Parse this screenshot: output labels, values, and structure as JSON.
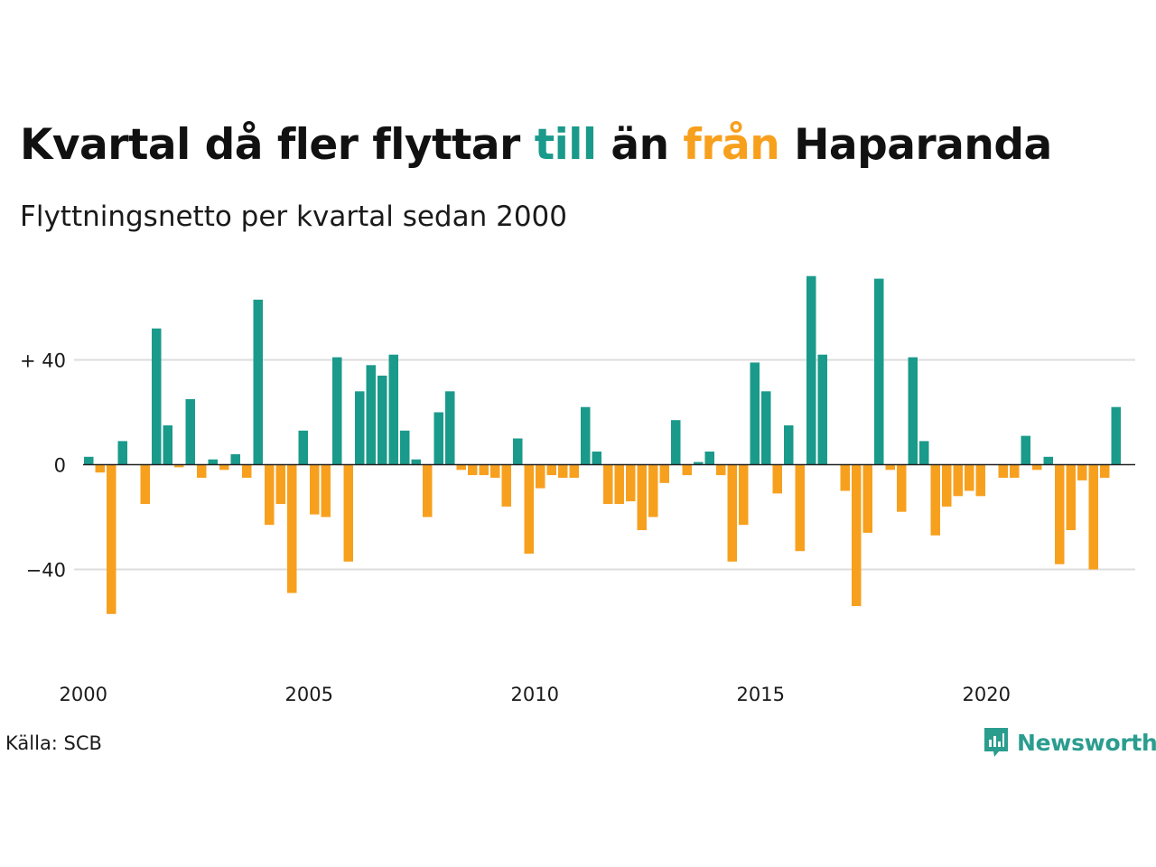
{
  "header": {
    "title_part1": "Kvartal då fler flyttar ",
    "title_till": "till",
    "title_part2": " än ",
    "title_fran": "från",
    "title_part3": " Haparanda",
    "subtitle": "Flyttningsnetto per kvartal sedan 2000"
  },
  "footer": {
    "source": "Källa: SCB",
    "brand": "Newsworthy"
  },
  "colors": {
    "positive": "#1a9a8a",
    "negative": "#f7a01e",
    "grid": "#dddddd",
    "axis": "#222222",
    "brand": "#2a9d8f"
  },
  "icons": {
    "brand_logo": "bar-chart-speech-bubble-icon"
  },
  "chart_data": {
    "type": "bar",
    "x_start": "2000 Q1",
    "x_ticks": [
      {
        "year": 2000,
        "label": "2000"
      },
      {
        "year": 2005,
        "label": "2005"
      },
      {
        "year": 2010,
        "label": "2010"
      },
      {
        "year": 2015,
        "label": "2015"
      },
      {
        "year": 2020,
        "label": "2020"
      }
    ],
    "y_ticks": [
      {
        "value": 40,
        "label": "+ 40"
      },
      {
        "value": 0,
        "label": "0"
      },
      {
        "value": -40,
        "label": "−40"
      }
    ],
    "ylim": [
      -74,
      76
    ],
    "grid": true,
    "series": [
      {
        "values": [
          3,
          -3,
          -57,
          9,
          0,
          -15,
          52,
          15,
          -1,
          25,
          -5,
          2,
          -2,
          4,
          -5,
          63,
          -23,
          -15,
          -49,
          13,
          -19,
          -20,
          41,
          -37,
          28,
          38,
          34,
          42,
          13,
          2,
          -20,
          20,
          28,
          -2,
          -4,
          -4,
          -5,
          -16,
          10,
          -34,
          -9,
          -4,
          -5,
          -5,
          22,
          5,
          -15,
          -15,
          -14,
          -25,
          -20,
          -7,
          17,
          -4,
          1,
          5,
          -4,
          -37,
          -23,
          39,
          28,
          -11,
          15,
          -33,
          72,
          42,
          0,
          -10,
          -54,
          -26,
          71,
          -2,
          -18,
          41,
          9,
          -27,
          -16,
          -12,
          -10,
          -12,
          0,
          -5,
          -5,
          11,
          -2,
          3,
          -38,
          -25,
          -6,
          -40,
          -5,
          22
        ]
      }
    ]
  }
}
